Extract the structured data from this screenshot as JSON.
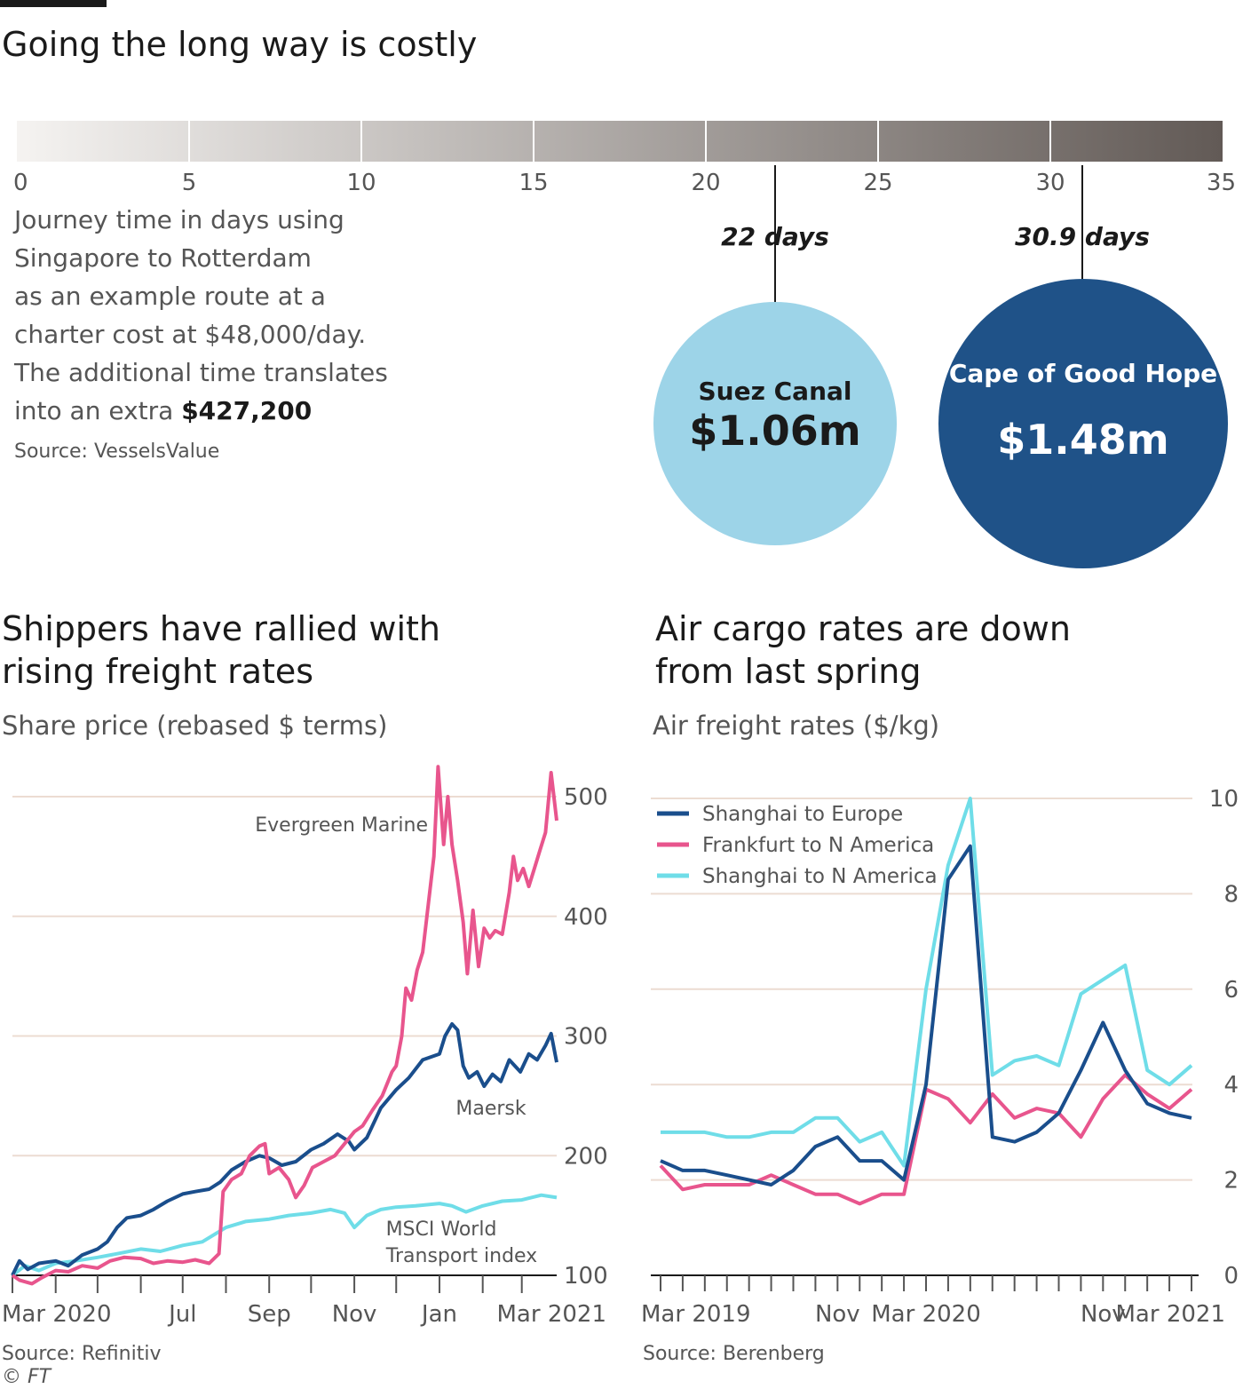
{
  "top": {
    "title": "Going the long way is costly",
    "scale_ticks": [
      "0",
      "5",
      "10",
      "15",
      "20",
      "25",
      "30",
      "35"
    ],
    "description_lines": [
      "Journey time in days using",
      "Singapore to Rotterdam",
      "as an example route at a",
      "charter cost at $48,000/day.",
      "The additional time translates"
    ],
    "description_last_prefix": "into an extra ",
    "description_last_bold": "$427,200",
    "source": "Source: VesselsValue",
    "routes": [
      {
        "days_label": "22 days",
        "days": 22,
        "name": "Suez Canal",
        "cost": "$1.06m",
        "color": "#9dd4e8",
        "text_color": "#1a1a1a"
      },
      {
        "days_label": "30.9 days",
        "days": 30.9,
        "name": "Cape of Good Hope",
        "cost": "$1.48m",
        "color": "#1f5288",
        "text_color": "#ffffff"
      }
    ],
    "scale_colors": [
      "#f5f3f1",
      "#625a56"
    ]
  },
  "left": {
    "title_line1": "Shippers have rallied with",
    "title_line2": "rising freight rates",
    "subtitle": "Share price (rebased $ terms)",
    "source": "Source: Refinitiv",
    "copyright": "© FT",
    "label_evergreen": "Evergreen Marine",
    "label_maersk": "Maersk",
    "label_msci_1": "MSCI World",
    "label_msci_2": "Transport index"
  },
  "right": {
    "title_line1": "Air cargo rates are down",
    "title_line2": "from last spring",
    "subtitle": "Air freight rates ($/kg)",
    "source": "Source: Berenberg"
  },
  "chart_data": [
    {
      "type": "line",
      "title": "Shippers have rallied with rising freight rates",
      "ylabel": "Share price (rebased $ terms)",
      "ylim": [
        100,
        500
      ],
      "yticks": [
        100,
        200,
        300,
        400,
        500
      ],
      "x_range": [
        "2020-03-01",
        "2021-03-26"
      ],
      "xtick_labels": [
        "Mar 2020",
        "Jul",
        "Sep",
        "Nov",
        "Jan",
        "Mar 2021"
      ],
      "xtick_dates": [
        "2020-03-01",
        "2020-07-01",
        "2020-09-01",
        "2020-11-01",
        "2021-01-01",
        "2021-03-01"
      ],
      "minor_tick_dates": [
        "2020-04-01",
        "2020-05-01",
        "2020-06-01",
        "2020-08-01",
        "2020-10-01",
        "2020-12-01",
        "2021-02-01"
      ],
      "series": [
        {
          "name": "Evergreen Marine",
          "color": "#e8558d",
          "points": [
            [
              "2020-03-01",
              100
            ],
            [
              "2020-03-06",
              96
            ],
            [
              "2020-03-15",
              93
            ],
            [
              "2020-03-22",
              98
            ],
            [
              "2020-04-01",
              104
            ],
            [
              "2020-04-10",
              103
            ],
            [
              "2020-04-20",
              108
            ],
            [
              "2020-05-01",
              106
            ],
            [
              "2020-05-10",
              112
            ],
            [
              "2020-05-20",
              115
            ],
            [
              "2020-06-01",
              114
            ],
            [
              "2020-06-10",
              110
            ],
            [
              "2020-06-20",
              112
            ],
            [
              "2020-07-01",
              111
            ],
            [
              "2020-07-10",
              113
            ],
            [
              "2020-07-20",
              110
            ],
            [
              "2020-07-27",
              118
            ],
            [
              "2020-07-30",
              170
            ],
            [
              "2020-08-05",
              180
            ],
            [
              "2020-08-12",
              185
            ],
            [
              "2020-08-18",
              200
            ],
            [
              "2020-08-25",
              208
            ],
            [
              "2020-08-29",
              210
            ],
            [
              "2020-09-01",
              185
            ],
            [
              "2020-09-08",
              190
            ],
            [
              "2020-09-15",
              180
            ],
            [
              "2020-09-20",
              165
            ],
            [
              "2020-09-26",
              175
            ],
            [
              "2020-10-02",
              190
            ],
            [
              "2020-10-10",
              195
            ],
            [
              "2020-10-18",
              200
            ],
            [
              "2020-10-25",
              210
            ],
            [
              "2020-11-01",
              220
            ],
            [
              "2020-11-07",
              225
            ],
            [
              "2020-11-14",
              238
            ],
            [
              "2020-11-21",
              250
            ],
            [
              "2020-11-28",
              270
            ],
            [
              "2020-12-01",
              275
            ],
            [
              "2020-12-05",
              300
            ],
            [
              "2020-12-08",
              340
            ],
            [
              "2020-12-12",
              330
            ],
            [
              "2020-12-16",
              355
            ],
            [
              "2020-12-20",
              370
            ],
            [
              "2020-12-24",
              410
            ],
            [
              "2020-12-28",
              450
            ],
            [
              "2020-12-31",
              525
            ],
            [
              "2021-01-04",
              460
            ],
            [
              "2021-01-07",
              500
            ],
            [
              "2021-01-10",
              460
            ],
            [
              "2021-01-14",
              430
            ],
            [
              "2021-01-18",
              395
            ],
            [
              "2021-01-21",
              352
            ],
            [
              "2021-01-25",
              405
            ],
            [
              "2021-01-29",
              358
            ],
            [
              "2021-02-02",
              390
            ],
            [
              "2021-02-06",
              382
            ],
            [
              "2021-02-10",
              388
            ],
            [
              "2021-02-15",
              385
            ],
            [
              "2021-02-20",
              420
            ],
            [
              "2021-02-23",
              450
            ],
            [
              "2021-02-26",
              430
            ],
            [
              "2021-03-02",
              440
            ],
            [
              "2021-03-06",
              425
            ],
            [
              "2021-03-10",
              440
            ],
            [
              "2021-03-14",
              455
            ],
            [
              "2021-03-18",
              470
            ],
            [
              "2021-03-22",
              520
            ],
            [
              "2021-03-26",
              480
            ]
          ]
        },
        {
          "name": "Maersk",
          "color": "#1a4e8c",
          "points": [
            [
              "2020-03-01",
              100
            ],
            [
              "2020-03-06",
              112
            ],
            [
              "2020-03-12",
              105
            ],
            [
              "2020-03-20",
              110
            ],
            [
              "2020-04-01",
              112
            ],
            [
              "2020-04-10",
              108
            ],
            [
              "2020-04-20",
              117
            ],
            [
              "2020-05-01",
              122
            ],
            [
              "2020-05-08",
              128
            ],
            [
              "2020-05-15",
              140
            ],
            [
              "2020-05-22",
              148
            ],
            [
              "2020-06-01",
              150
            ],
            [
              "2020-06-10",
              155
            ],
            [
              "2020-06-20",
              162
            ],
            [
              "2020-07-01",
              168
            ],
            [
              "2020-07-10",
              170
            ],
            [
              "2020-07-20",
              172
            ],
            [
              "2020-07-28",
              178
            ],
            [
              "2020-08-05",
              188
            ],
            [
              "2020-08-15",
              195
            ],
            [
              "2020-08-25",
              200
            ],
            [
              "2020-09-01",
              198
            ],
            [
              "2020-09-10",
              192
            ],
            [
              "2020-09-20",
              195
            ],
            [
              "2020-10-01",
              205
            ],
            [
              "2020-10-10",
              210
            ],
            [
              "2020-10-20",
              218
            ],
            [
              "2020-10-28",
              212
            ],
            [
              "2020-11-01",
              205
            ],
            [
              "2020-11-10",
              215
            ],
            [
              "2020-11-20",
              240
            ],
            [
              "2020-12-01",
              255
            ],
            [
              "2020-12-10",
              265
            ],
            [
              "2020-12-20",
              280
            ],
            [
              "2021-01-01",
              285
            ],
            [
              "2021-01-05",
              300
            ],
            [
              "2021-01-10",
              310
            ],
            [
              "2021-01-14",
              305
            ],
            [
              "2021-01-18",
              275
            ],
            [
              "2021-01-22",
              265
            ],
            [
              "2021-01-28",
              270
            ],
            [
              "2021-02-02",
              258
            ],
            [
              "2021-02-08",
              268
            ],
            [
              "2021-02-14",
              262
            ],
            [
              "2021-02-20",
              280
            ],
            [
              "2021-02-28",
              270
            ],
            [
              "2021-03-06",
              285
            ],
            [
              "2021-03-12",
              280
            ],
            [
              "2021-03-18",
              292
            ],
            [
              "2021-03-22",
              302
            ],
            [
              "2021-03-26",
              278
            ]
          ]
        },
        {
          "name": "MSCI World Transport index",
          "color": "#6fdde8",
          "points": [
            [
              "2020-03-01",
              100
            ],
            [
              "2020-03-10",
              108
            ],
            [
              "2020-03-20",
              104
            ],
            [
              "2020-04-01",
              110
            ],
            [
              "2020-04-15",
              112
            ],
            [
              "2020-05-01",
              115
            ],
            [
              "2020-05-15",
              118
            ],
            [
              "2020-06-01",
              122
            ],
            [
              "2020-06-15",
              120
            ],
            [
              "2020-07-01",
              125
            ],
            [
              "2020-07-15",
              128
            ],
            [
              "2020-08-01",
              140
            ],
            [
              "2020-08-15",
              145
            ],
            [
              "2020-09-01",
              147
            ],
            [
              "2020-09-15",
              150
            ],
            [
              "2020-10-01",
              152
            ],
            [
              "2020-10-15",
              155
            ],
            [
              "2020-10-25",
              152
            ],
            [
              "2020-11-01",
              140
            ],
            [
              "2020-11-10",
              150
            ],
            [
              "2020-11-20",
              155
            ],
            [
              "2020-12-01",
              157
            ],
            [
              "2020-12-15",
              158
            ],
            [
              "2021-01-01",
              160
            ],
            [
              "2021-01-10",
              158
            ],
            [
              "2021-01-20",
              153
            ],
            [
              "2021-02-01",
              158
            ],
            [
              "2021-02-15",
              162
            ],
            [
              "2021-03-01",
              163
            ],
            [
              "2021-03-15",
              167
            ],
            [
              "2021-03-26",
              165
            ]
          ]
        }
      ]
    },
    {
      "type": "line",
      "title": "Air cargo rates are down from last spring",
      "ylabel": "Air freight rates ($/kg)",
      "ylim": [
        0,
        10
      ],
      "yticks": [
        0,
        2,
        4,
        6,
        8,
        10
      ],
      "xtick_labels": [
        "Mar 2019",
        "Nov",
        "Mar 2020",
        "Nov",
        "Mar 2021"
      ],
      "xtick_months": [
        "2019-03",
        "2019-11",
        "2020-03",
        "2020-11",
        "2021-03"
      ],
      "months": [
        "2019-03",
        "2019-04",
        "2019-05",
        "2019-06",
        "2019-07",
        "2019-08",
        "2019-09",
        "2019-10",
        "2019-11",
        "2019-12",
        "2020-01",
        "2020-02",
        "2020-03",
        "2020-04",
        "2020-05",
        "2020-06",
        "2020-07",
        "2020-08",
        "2020-09",
        "2020-10",
        "2020-11",
        "2020-12",
        "2021-01",
        "2021-02",
        "2021-03"
      ],
      "legend_position": "top-left",
      "series": [
        {
          "name": "Shanghai to Europe",
          "color": "#1a4e8c",
          "values": [
            2.4,
            2.2,
            2.2,
            2.1,
            2.0,
            1.9,
            2.2,
            2.7,
            2.9,
            2.4,
            2.4,
            2.0,
            4.0,
            8.3,
            9.0,
            2.9,
            2.8,
            3.0,
            3.4,
            4.3,
            5.3,
            4.3,
            3.6,
            3.4,
            3.3
          ]
        },
        {
          "name": "Frankfurt to N America",
          "color": "#e8558d",
          "values": [
            2.3,
            1.8,
            1.9,
            1.9,
            1.9,
            2.1,
            1.9,
            1.7,
            1.7,
            1.5,
            1.7,
            1.7,
            3.9,
            3.7,
            3.2,
            3.8,
            3.3,
            3.5,
            3.4,
            2.9,
            3.7,
            4.2,
            3.8,
            3.5,
            3.9
          ]
        },
        {
          "name": "Shanghai to N America",
          "color": "#6fdde8",
          "values": [
            3.0,
            3.0,
            3.0,
            2.9,
            2.9,
            3.0,
            3.0,
            3.3,
            3.3,
            2.8,
            3.0,
            2.3,
            6.0,
            8.6,
            10.0,
            4.2,
            4.5,
            4.6,
            4.4,
            5.9,
            6.2,
            6.5,
            4.3,
            4.0,
            4.4
          ]
        }
      ]
    }
  ]
}
